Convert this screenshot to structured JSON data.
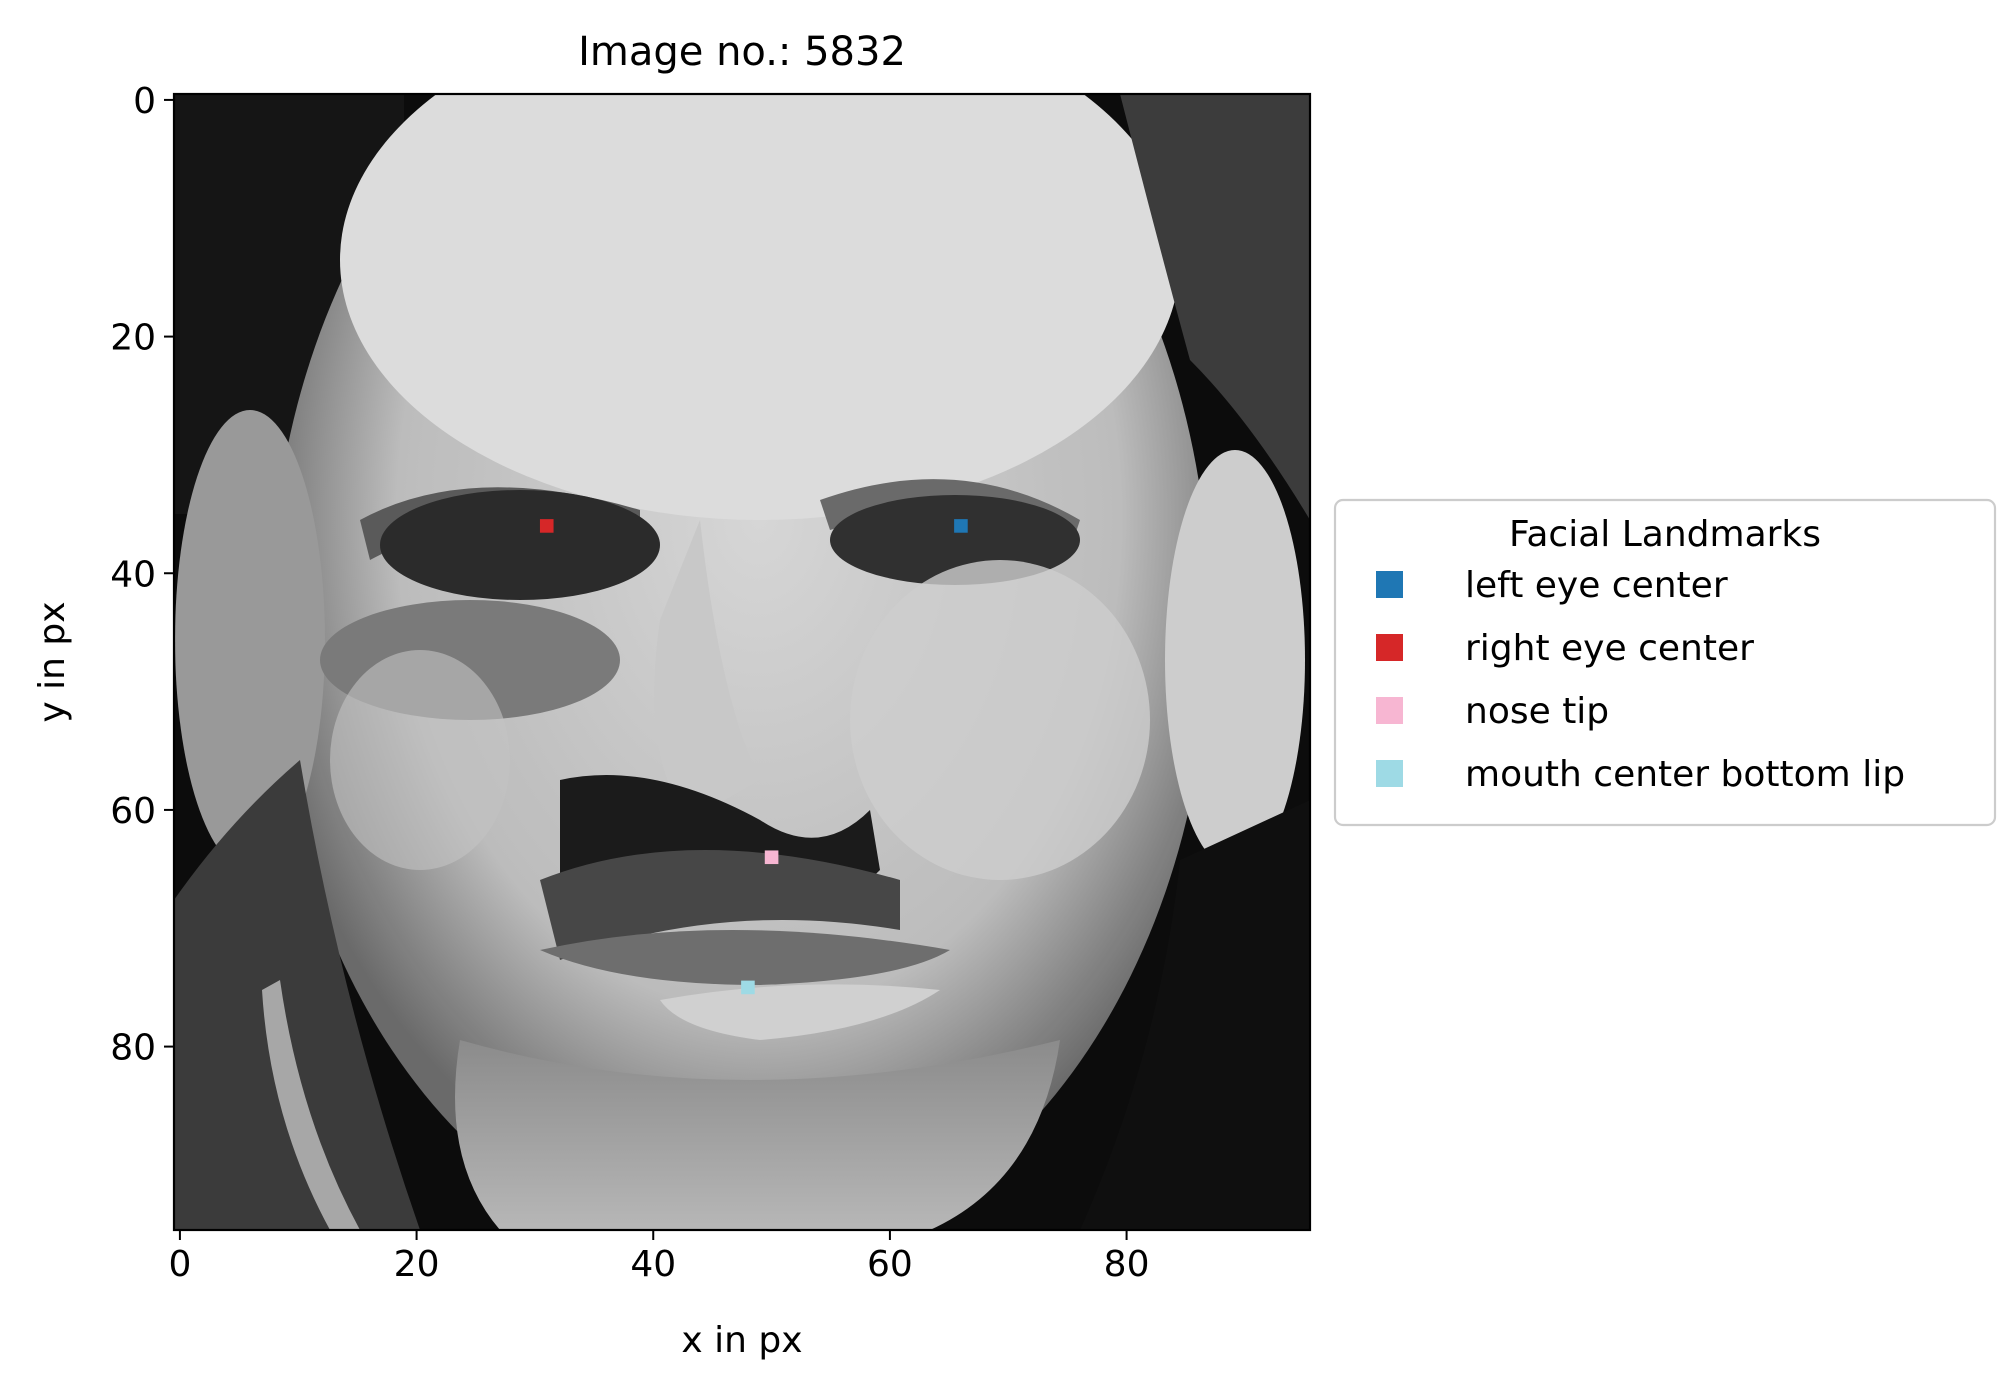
{
  "chart_data": {
    "type": "scatter",
    "title": "Image no.: 5832",
    "xlabel": "x in px",
    "ylabel": "y in px",
    "xlim": [
      -0.5,
      95.5
    ],
    "ylim": [
      95.5,
      -0.5
    ],
    "y_inverted": true,
    "grid": false,
    "background": "96x96 grayscale photograph of a man's face",
    "x_ticks": [
      0,
      20,
      40,
      60,
      80
    ],
    "y_ticks": [
      0,
      20,
      40,
      60,
      80
    ],
    "legend": {
      "title": "Facial Landmarks",
      "placement": "center-left outside right of axes"
    },
    "series": [
      {
        "name": "left eye center",
        "color": "#1f77b4",
        "marker": "square",
        "x": [
          66
        ],
        "y": [
          36
        ]
      },
      {
        "name": "right eye center",
        "color": "#d62728",
        "marker": "square",
        "x": [
          31
        ],
        "y": [
          36
        ]
      },
      {
        "name": "nose tip",
        "color": "#f7b6d2",
        "marker": "square",
        "x": [
          50
        ],
        "y": [
          64
        ]
      },
      {
        "name": "mouth center bottom lip",
        "color": "#9edae5",
        "marker": "square",
        "x": [
          48
        ],
        "y": [
          75
        ]
      }
    ]
  }
}
